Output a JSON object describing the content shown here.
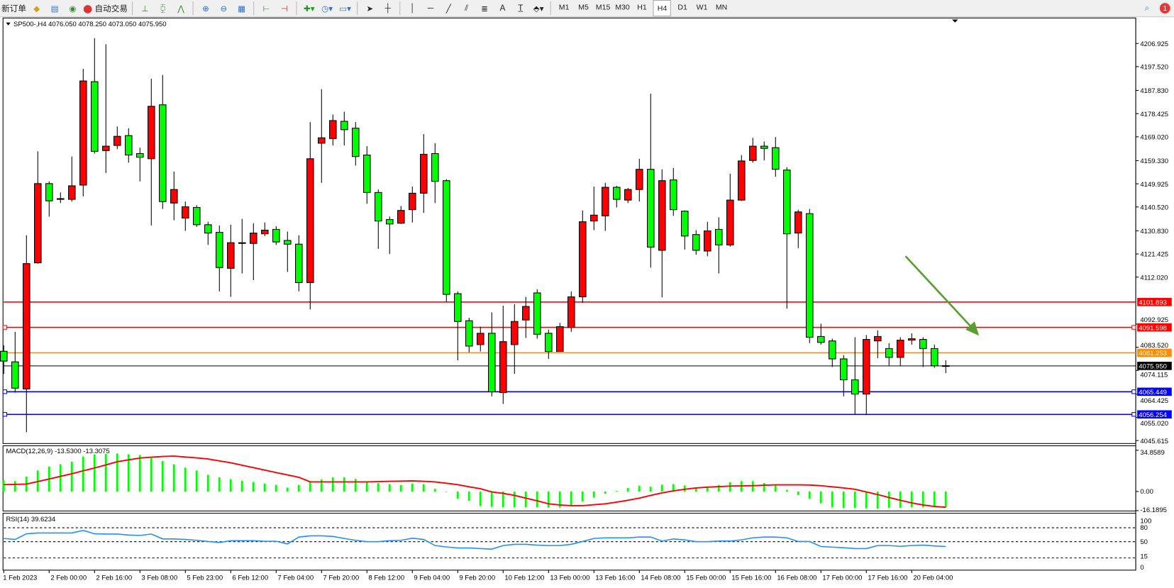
{
  "toolbar": {
    "new_order": "新订单",
    "auto_trading": "自动交易",
    "timeframes": [
      "M1",
      "M5",
      "M15",
      "M30",
      "H1",
      "H4",
      "D1",
      "W1",
      "MN"
    ],
    "active_timeframe": "H4",
    "text_tool": "A",
    "notification_count": "1",
    "icons": [
      "gold-bars-icon",
      "market-watch-icon",
      "signal-icon",
      "auto-trading-icon",
      "bar-chart-icon",
      "candlestick-icon",
      "line-chart-icon",
      "zoom-in-icon",
      "zoom-out-icon",
      "tile-windows-icon",
      "chart-shift-icon",
      "auto-scroll-icon",
      "indicators-icon",
      "period-clock-icon",
      "templates-icon",
      "cursor-icon",
      "crosshair-icon",
      "vertical-line-icon",
      "horizontal-line-icon",
      "trendline-icon",
      "equidistant-channel-icon",
      "fibonacci-icon",
      "text-icon",
      "text-label-icon",
      "arrows-icon",
      "search-icon",
      "notification-icon"
    ]
  },
  "chart": {
    "header": "SP500-,H4  4076.050 4078.250 4073.050 4075.950",
    "colors": {
      "bull": "#ff0000",
      "bear": "#00ff00",
      "macd_hist": "#00ff00",
      "signal": "#ff0000",
      "rsi": "#1e90ff",
      "arrow": "#5a9e2f"
    },
    "price_ticks": [
      "4206.925",
      "4197.520",
      "4187.830",
      "4178.425",
      "4169.020",
      "4159.330",
      "4149.925",
      "4140.520",
      "4130.830",
      "4121.425",
      "4112.020",
      "4092.925",
      "4083.520",
      "4074.115",
      "4064.425",
      "4055.020",
      "4045.615"
    ],
    "levels": [
      {
        "price": "4101.893",
        "color": "#ff0000",
        "marker": false
      },
      {
        "price": "4091.598",
        "color": "#ff0000",
        "marker": true
      },
      {
        "price": "4081.253",
        "color": "#ff8c00",
        "marker": false
      },
      {
        "price": "4075.950",
        "color": "#000000",
        "marker": false,
        "current": true
      },
      {
        "price": "4065.449",
        "color": "#0000ff",
        "marker": true
      },
      {
        "price": "4056.254",
        "color": "#0000ff",
        "marker": true
      }
    ],
    "time_labels": [
      "1 Feb 2023",
      "2 Feb 00:00",
      "2 Feb 16:00",
      "3 Feb 08:00",
      "5 Feb 23:00",
      "6 Feb 12:00",
      "7 Feb 04:00",
      "7 Feb 20:00",
      "8 Feb 12:00",
      "9 Feb 04:00",
      "9 Feb 20:00",
      "10 Feb 12:00",
      "13 Feb 00:00",
      "13 Feb 16:00",
      "14 Feb 08:00",
      "15 Feb 00:00",
      "15 Feb 16:00",
      "16 Feb 08:00",
      "17 Feb 00:00",
      "17 Feb 16:00",
      "20 Feb 04:00"
    ],
    "annotation": "green-down-arrow"
  },
  "macd": {
    "label": "MACD(12,26,9) -13.5300 -13.3075",
    "ticks": [
      "34.8589",
      "0.00",
      "-16.1895"
    ]
  },
  "rsi": {
    "label": "RSI(14) 39.6234",
    "ticks": [
      "100",
      "80",
      "50",
      "15",
      "0"
    ],
    "levels": [
      80,
      50,
      15
    ]
  },
  "chart_data": {
    "type": "candlestick",
    "symbol": "SP500-",
    "timeframe": "H4",
    "ohlc": [
      [
        4081.9,
        4084.3,
        4072.7,
        4077.9
      ],
      [
        4077.6,
        4089.8,
        4065.1,
        4066.9
      ],
      [
        4066.6,
        4129.0,
        4049.0,
        4117.5
      ],
      [
        4117.8,
        4163.1,
        4117.5,
        4150.0
      ],
      [
        4150.0,
        4150.9,
        4136.6,
        4143.0
      ],
      [
        4143.9,
        4146.4,
        4142.1,
        4143.6
      ],
      [
        4143.6,
        4161.0,
        4142.7,
        4149.1
      ],
      [
        4149.4,
        4196.6,
        4144.8,
        4191.7
      ],
      [
        4191.4,
        4209.1,
        4162.2,
        4163.1
      ],
      [
        4163.4,
        4206.6,
        4154.3,
        4165.2
      ],
      [
        4165.5,
        4173.2,
        4164.0,
        4169.2
      ],
      [
        4169.5,
        4172.5,
        4158.5,
        4161.6
      ],
      [
        4162.2,
        4164.6,
        4150.9,
        4160.7
      ],
      [
        4160.1,
        4192.6,
        4133.0,
        4181.4
      ],
      [
        4182.0,
        4194.1,
        4139.7,
        4142.7
      ],
      [
        4142.1,
        4154.9,
        4135.1,
        4147.6
      ],
      [
        4136.0,
        4142.7,
        4130.8,
        4140.6
      ],
      [
        4140.3,
        4141.2,
        4132.4,
        4133.3
      ],
      [
        4133.3,
        4134.5,
        4125.1,
        4129.9
      ],
      [
        4130.2,
        4133.0,
        4106.2,
        4115.9
      ],
      [
        4115.6,
        4133.3,
        4104.0,
        4126.0
      ],
      [
        4126.0,
        4135.7,
        4113.5,
        4125.9
      ],
      [
        4125.7,
        4133.9,
        4110.8,
        4129.9
      ],
      [
        4129.6,
        4134.2,
        4128.7,
        4131.1
      ],
      [
        4131.4,
        4132.7,
        4125.1,
        4126.3
      ],
      [
        4126.9,
        4130.5,
        4114.1,
        4125.4
      ],
      [
        4125.4,
        4129.0,
        4106.2,
        4109.8
      ],
      [
        4109.8,
        4175.0,
        4098.9,
        4160.1
      ],
      [
        4166.4,
        4188.4,
        4150.3,
        4168.6
      ],
      [
        4168.3,
        4178.0,
        4165.5,
        4175.6
      ],
      [
        4175.3,
        4179.2,
        4165.5,
        4171.9
      ],
      [
        4172.5,
        4175.0,
        4157.3,
        4161.0
      ],
      [
        4161.6,
        4165.2,
        4141.8,
        4146.4
      ],
      [
        4146.4,
        4147.6,
        4123.5,
        4134.8
      ],
      [
        4135.4,
        4136.6,
        4121.4,
        4133.6
      ],
      [
        4133.9,
        4140.9,
        4133.6,
        4139.1
      ],
      [
        4139.4,
        4148.8,
        4134.2,
        4146.1
      ],
      [
        4146.1,
        4170.1,
        4138.1,
        4161.9
      ],
      [
        4162.2,
        4166.4,
        4142.1,
        4150.9
      ],
      [
        4151.2,
        4151.8,
        4101.9,
        4105.0
      ],
      [
        4105.3,
        4106.2,
        4078.2,
        4094.0
      ],
      [
        4094.3,
        4095.5,
        4081.5,
        4084.0
      ],
      [
        4084.6,
        4091.9,
        4081.8,
        4089.2
      ],
      [
        4089.2,
        4097.7,
        4063.6,
        4065.4
      ],
      [
        4065.1,
        4100.4,
        4060.5,
        4085.8
      ],
      [
        4084.6,
        4101.0,
        4072.7,
        4094.0
      ],
      [
        4094.6,
        4104.0,
        4087.3,
        4100.1
      ],
      [
        4105.6,
        4107.1,
        4087.0,
        4088.8
      ],
      [
        4089.2,
        4090.7,
        4078.8,
        4081.8
      ],
      [
        4081.8,
        4093.4,
        4081.8,
        4091.9
      ],
      [
        4091.6,
        4106.2,
        4089.8,
        4104.0
      ],
      [
        4104.0,
        4139.1,
        4101.6,
        4134.5
      ],
      [
        4134.8,
        4148.8,
        4131.1,
        4137.2
      ],
      [
        4136.9,
        4150.3,
        4130.8,
        4148.5
      ],
      [
        4148.5,
        4149.1,
        4140.3,
        4143.6
      ],
      [
        4143.3,
        4148.2,
        4142.1,
        4147.6
      ],
      [
        4147.6,
        4160.1,
        4142.7,
        4155.8
      ],
      [
        4155.8,
        4186.5,
        4115.9,
        4124.2
      ],
      [
        4122.9,
        4155.8,
        4103.8,
        4151.2
      ],
      [
        4151.5,
        4156.4,
        4136.9,
        4139.4
      ],
      [
        4138.8,
        4139.1,
        4123.2,
        4128.7
      ],
      [
        4129.3,
        4131.1,
        4121.1,
        4122.9
      ],
      [
        4122.6,
        4134.5,
        4120.5,
        4130.8
      ],
      [
        4131.4,
        4136.3,
        4113.5,
        4125.1
      ],
      [
        4125.1,
        4154.0,
        4124.4,
        4143.3
      ],
      [
        4143.3,
        4161.6,
        4143.0,
        4159.2
      ],
      [
        4159.4,
        4168.6,
        4158.5,
        4165.2
      ],
      [
        4165.2,
        4167.1,
        4159.4,
        4164.3
      ],
      [
        4164.6,
        4168.9,
        4152.8,
        4155.8
      ],
      [
        4155.5,
        4156.7,
        4099.2,
        4129.6
      ],
      [
        4129.9,
        4139.4,
        4123.8,
        4138.5
      ],
      [
        4137.8,
        4139.7,
        4085.2,
        4087.6
      ],
      [
        4087.9,
        4093.1,
        4084.6,
        4085.5
      ],
      [
        4086.1,
        4087.0,
        4075.5,
        4078.8
      ],
      [
        4078.8,
        4080.3,
        4063.6,
        4070.3
      ],
      [
        4070.3,
        4087.6,
        4056.3,
        4064.5
      ],
      [
        4064.5,
        4088.5,
        4056.0,
        4086.7
      ],
      [
        4086.1,
        4090.4,
        4079.1,
        4087.9
      ],
      [
        4083.0,
        4085.2,
        4075.8,
        4079.4
      ],
      [
        4079.4,
        4087.6,
        4075.8,
        4086.4
      ],
      [
        4086.4,
        4089.2,
        4084.6,
        4087.0
      ],
      [
        4086.7,
        4087.6,
        4075.5,
        4083.0
      ],
      [
        4083.0,
        4084.6,
        4075.2,
        4076.05
      ],
      [
        4076.05,
        4078.25,
        4073.05,
        4075.95
      ]
    ],
    "macd_hist": [
      9.3,
      8.8,
      12.5,
      17.8,
      21,
      23,
      25.2,
      29.6,
      31.3,
      31.9,
      32.2,
      31.5,
      30.8,
      28.3,
      25.7,
      23,
      20.2,
      17.8,
      14.1,
      12,
      10.4,
      9,
      8.1,
      6.7,
      5.6,
      3.3,
      5.6,
      7.6,
      10.2,
      12,
      12,
      10.7,
      7.9,
      7.2,
      6.2,
      5.5,
      6.7,
      6.2,
      2.3,
      -0.4,
      -6,
      -7.9,
      -12.1,
      -13,
      -13.2,
      -13.2,
      -13.2,
      -13.2,
      -13.6,
      -13.6,
      -12.1,
      -8.3,
      -5.1,
      -1.9,
      0.5,
      3,
      4.9,
      4,
      5.8,
      6.2,
      5.1,
      3.2,
      3.7,
      5.5,
      7.9,
      8.8,
      8.8,
      7.2,
      5.5,
      1.4,
      -3,
      -6.2,
      -10,
      -13.2,
      -13.9,
      -13.9,
      -14.3,
      -14.4,
      -13.9,
      -13.9,
      -13.2,
      -13.2,
      -12.9,
      -13.53
    ],
    "macd_signal": [
      5.8,
      6.0,
      6.3,
      8.4,
      10.6,
      12.8,
      15,
      17.5,
      19.9,
      22.5,
      25.2,
      26.8,
      28.3,
      29,
      29.6,
      29.9,
      29.2,
      28.4,
      27.5,
      25.9,
      24.3,
      22.2,
      20.2,
      18.1,
      16,
      14,
      12,
      8.1,
      8.1,
      8.1,
      8.1,
      8.1,
      8.1,
      8.3,
      8.6,
      8.8,
      9,
      8.6,
      8.1,
      7,
      5.8,
      4,
      2.3,
      -0.4,
      -1.6,
      -3.3,
      -5.6,
      -7.9,
      -10.4,
      -11.4,
      -12,
      -12,
      -11.2,
      -10.4,
      -9,
      -7.4,
      -5.6,
      -3.3,
      -1.2,
      0.5,
      1.9,
      3,
      3.7,
      4.1,
      4.6,
      4.7,
      4.9,
      5.3,
      5.6,
      5.6,
      5.6,
      5.5,
      4.9,
      4,
      3,
      1.9,
      -0.4,
      -2.6,
      -5.1,
      -7.4,
      -9.7,
      -11.4,
      -12.7,
      -13.31
    ],
    "rsi": [
      57,
      54.8,
      67,
      68.7,
      68.7,
      68.7,
      68.7,
      74.3,
      67,
      66.5,
      66.5,
      64.3,
      63.5,
      66.5,
      56,
      56,
      54.8,
      53,
      50.4,
      48.3,
      52.2,
      52.2,
      52.2,
      50.9,
      50.9,
      45.2,
      60,
      62.6,
      62.6,
      61.3,
      57,
      53,
      50,
      50,
      52.2,
      53,
      57.4,
      54.8,
      41.7,
      38.7,
      36.5,
      36.5,
      35.2,
      34,
      41.7,
      44.3,
      44.3,
      42.6,
      41.7,
      41.7,
      44.3,
      50.4,
      57,
      58.3,
      58.3,
      58.3,
      60,
      60,
      51.3,
      56,
      53.9,
      50,
      50,
      51.3,
      51.3,
      53.9,
      58.3,
      60,
      60,
      58.3,
      50.4,
      50.4,
      39.6,
      38.3,
      37,
      35.2,
      35.2,
      41.7,
      41.7,
      40,
      41.7,
      42.6,
      40.9,
      39.62
    ],
    "price_range": [
      4045.615,
      4206.925
    ],
    "macd_range": [
      -16.1895,
      34.8589
    ],
    "rsi_range": [
      0,
      100
    ],
    "grid": false
  }
}
